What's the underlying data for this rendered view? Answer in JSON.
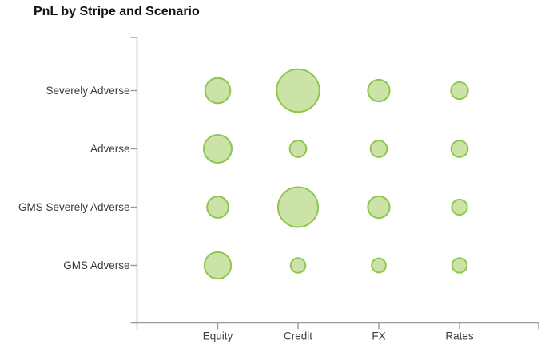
{
  "title": "PnL by Stripe and Scenario",
  "chart_data": {
    "type": "bubble",
    "title": "PnL by Stripe and Scenario",
    "x_categories": [
      "Equity",
      "Credit",
      "FX",
      "Rates"
    ],
    "y_categories": [
      "Severely Adverse",
      "Adverse",
      "GMS Severely Adverse",
      "GMS Adverse"
    ],
    "series": [
      {
        "name": "Severely Adverse",
        "sizes": [
          35,
          100,
          26,
          16
        ]
      },
      {
        "name": "Adverse",
        "sizes": [
          43,
          15,
          15,
          15
        ]
      },
      {
        "name": "GMS Severely Adverse",
        "sizes": [
          25,
          88,
          26,
          13
        ]
      },
      {
        "name": "GMS Adverse",
        "sizes": [
          39,
          12,
          11,
          12
        ]
      }
    ],
    "sizes_are": "relative bubble area, largest bubble = 100 (estimated; no data labels shown)",
    "legend": "none",
    "grid": false,
    "colors": {
      "bubble_fill": "#cbe3a6",
      "bubble_stroke": "#8ec64f",
      "axis": "#9a9a9a",
      "label": "#3b3b3b",
      "title": "#111111"
    }
  }
}
